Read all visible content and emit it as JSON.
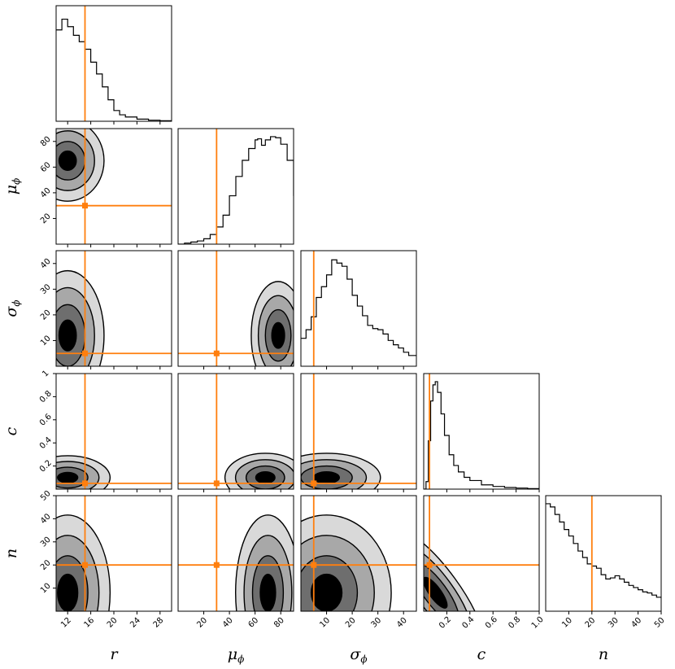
{
  "chart_data": {
    "type": "corner",
    "parameters": [
      {
        "key": "r",
        "symbol": "r",
        "sub": "",
        "range": [
          10,
          30
        ],
        "ticks": [
          12,
          16,
          20,
          24,
          28
        ],
        "truth": 15
      },
      {
        "key": "mu_phi",
        "symbol": "μ",
        "sub": "ϕ",
        "range": [
          0,
          90
        ],
        "ticks": [
          20,
          40,
          60,
          80
        ],
        "truth": 30
      },
      {
        "key": "sigma_phi",
        "symbol": "σ",
        "sub": "ϕ",
        "range": [
          0,
          45
        ],
        "ticks": [
          10,
          20,
          30,
          40
        ],
        "truth": 5
      },
      {
        "key": "c",
        "symbol": "c",
        "sub": "",
        "range": [
          0,
          1.0
        ],
        "ticks": [
          0.2,
          0.4,
          0.6,
          0.8,
          1.0
        ],
        "tick_labels": [
          "0.2",
          "0.4",
          "0.6",
          "0.8",
          "1.0"
        ],
        "truth": 0.05
      },
      {
        "key": "n",
        "symbol": "n",
        "sub": "",
        "range": [
          0,
          50
        ],
        "ticks": [
          10,
          20,
          30,
          40,
          50
        ],
        "truth": 20
      }
    ],
    "histograms": {
      "r": {
        "x": [
          10,
          11,
          12,
          13,
          14,
          15,
          16,
          17,
          18,
          19,
          20,
          21,
          22,
          24,
          26,
          28,
          30
        ],
        "y": [
          0.85,
          0.95,
          0.88,
          0.8,
          0.74,
          0.67,
          0.55,
          0.44,
          0.32,
          0.2,
          0.1,
          0.06,
          0.04,
          0.02,
          0.01,
          0.005,
          0.0
        ]
      },
      "mu_phi": {
        "x": [
          0,
          5,
          10,
          15,
          20,
          25,
          30,
          35,
          40,
          45,
          50,
          55,
          60,
          62,
          65,
          68,
          72,
          76,
          80,
          85,
          90
        ],
        "y": [
          0.0,
          0.01,
          0.02,
          0.03,
          0.05,
          0.09,
          0.16,
          0.27,
          0.45,
          0.63,
          0.78,
          0.89,
          0.97,
          0.98,
          0.92,
          0.97,
          1.0,
          0.99,
          0.93,
          0.78,
          0.45
        ]
      },
      "sigma_phi": {
        "x": [
          0,
          2,
          4,
          6,
          8,
          10,
          12,
          14,
          16,
          18,
          20,
          22,
          24,
          26,
          28,
          30,
          32,
          34,
          36,
          38,
          40,
          42,
          45
        ],
        "y": [
          0.26,
          0.34,
          0.46,
          0.64,
          0.74,
          0.85,
          0.99,
          0.96,
          0.93,
          0.81,
          0.66,
          0.56,
          0.47,
          0.38,
          0.35,
          0.34,
          0.3,
          0.24,
          0.2,
          0.17,
          0.13,
          0.1,
          0.1
        ]
      },
      "c": {
        "x": [
          0,
          0.02,
          0.04,
          0.06,
          0.08,
          0.1,
          0.12,
          0.15,
          0.18,
          0.22,
          0.26,
          0.3,
          0.35,
          0.4,
          0.5,
          0.6,
          0.7,
          0.8,
          0.9,
          1.0
        ],
        "y": [
          0.0,
          0.07,
          0.45,
          0.82,
          0.97,
          1.0,
          0.9,
          0.7,
          0.5,
          0.32,
          0.22,
          0.16,
          0.11,
          0.08,
          0.04,
          0.025,
          0.015,
          0.01,
          0.005,
          0.003
        ]
      },
      "n": {
        "x": [
          0,
          2,
          4,
          6,
          8,
          10,
          12,
          14,
          16,
          18,
          20,
          22,
          24,
          26,
          28,
          30,
          32,
          34,
          36,
          38,
          40,
          42,
          44,
          46,
          48,
          50
        ],
        "y": [
          1.0,
          0.97,
          0.9,
          0.83,
          0.76,
          0.7,
          0.63,
          0.56,
          0.5,
          0.44,
          0.42,
          0.4,
          0.34,
          0.3,
          0.31,
          0.33,
          0.3,
          0.27,
          0.24,
          0.22,
          0.2,
          0.18,
          0.17,
          0.15,
          0.13,
          0.12
        ]
      }
    },
    "contours": [
      {
        "pair": [
          "r",
          "mu_phi"
        ],
        "center": [
          12,
          65
        ],
        "spread": [
          3.0,
          15
        ],
        "levels": 4,
        "skew": 0.0
      },
      {
        "pair": [
          "r",
          "sigma_phi"
        ],
        "center": [
          12,
          12
        ],
        "spread": [
          3.0,
          12
        ],
        "levels": 4,
        "skew": 0.0
      },
      {
        "pair": [
          "mu_phi",
          "sigma_phi"
        ],
        "center": [
          78,
          12
        ],
        "spread": [
          10,
          10
        ],
        "levels": 4,
        "skew": 0.0
      },
      {
        "pair": [
          "r",
          "c"
        ],
        "center": [
          12,
          0.1
        ],
        "spread": [
          3.5,
          0.09
        ],
        "levels": 4,
        "skew": 0.0
      },
      {
        "pair": [
          "mu_phi",
          "c"
        ],
        "center": [
          68,
          0.1
        ],
        "spread": [
          15,
          0.1
        ],
        "levels": 4,
        "skew": 0.0
      },
      {
        "pair": [
          "sigma_phi",
          "c"
        ],
        "center": [
          10,
          0.1
        ],
        "spread": [
          10,
          0.1
        ],
        "levels": 4,
        "skew": 0.0
      },
      {
        "pair": [
          "r",
          "n"
        ],
        "center": [
          12,
          8
        ],
        "spread": [
          3.5,
          16
        ],
        "levels": 4,
        "skew": 0.0
      },
      {
        "pair": [
          "mu_phi",
          "n"
        ],
        "center": [
          70,
          8
        ],
        "spread": [
          12,
          16
        ],
        "levels": 4,
        "skew": 0.0
      },
      {
        "pair": [
          "sigma_phi",
          "n"
        ],
        "center": [
          10,
          8
        ],
        "spread": [
          12,
          16
        ],
        "levels": 4,
        "skew": 0.0
      },
      {
        "pair": [
          "c",
          "n"
        ],
        "center": [
          0.1,
          8
        ],
        "spread": [
          0.1,
          16
        ],
        "levels": 4,
        "skew": -0.6
      }
    ],
    "truth_color": "#ff7f0e",
    "fill_colors": [
      "#d9d9d9",
      "#a8a8a8",
      "#6e6e6e",
      "#000000"
    ]
  }
}
